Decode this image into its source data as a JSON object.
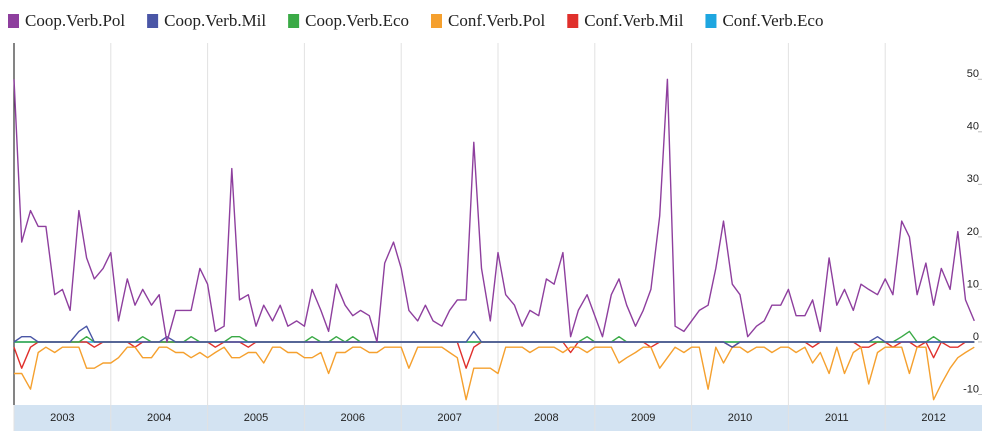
{
  "chart_data": {
    "type": "line",
    "x": [
      2003,
      2003.08,
      2003.17,
      2003.25,
      2003.33,
      2003.42,
      2003.5,
      2003.58,
      2003.67,
      2003.75,
      2003.83,
      2003.92,
      2004,
      2004.08,
      2004.17,
      2004.25,
      2004.33,
      2004.42,
      2004.5,
      2004.58,
      2004.67,
      2004.75,
      2004.83,
      2004.92,
      2005,
      2005.08,
      2005.17,
      2005.25,
      2005.33,
      2005.42,
      2005.5,
      2005.58,
      2005.67,
      2005.75,
      2005.83,
      2005.92,
      2006,
      2006.08,
      2006.17,
      2006.25,
      2006.33,
      2006.42,
      2006.5,
      2006.58,
      2006.67,
      2006.75,
      2006.83,
      2006.92,
      2007,
      2007.08,
      2007.17,
      2007.25,
      2007.33,
      2007.42,
      2007.5,
      2007.58,
      2007.67,
      2007.75,
      2007.83,
      2007.92,
      2008,
      2008.08,
      2008.17,
      2008.25,
      2008.33,
      2008.42,
      2008.5,
      2008.58,
      2008.67,
      2008.75,
      2008.83,
      2008.92,
      2009,
      2009.08,
      2009.17,
      2009.25,
      2009.33,
      2009.42,
      2009.5,
      2009.58,
      2009.67,
      2009.75,
      2009.83,
      2009.92,
      2010,
      2010.08,
      2010.17,
      2010.25,
      2010.33,
      2010.42,
      2010.5,
      2010.58,
      2010.67,
      2010.75,
      2010.83,
      2010.92,
      2011,
      2011.08,
      2011.17,
      2011.25,
      2011.33,
      2011.42,
      2011.5,
      2011.58,
      2011.67,
      2011.75,
      2011.83,
      2011.92,
      2012,
      2012.08,
      2012.17,
      2012.25,
      2012.33,
      2012.42,
      2012.5,
      2012.58,
      2012.67,
      2012.75,
      2012.83,
      2012.92
    ],
    "xlim": [
      2003,
      2013
    ],
    "xticks": [
      2003,
      2004,
      2005,
      2006,
      2007,
      2008,
      2009,
      2010,
      2011,
      2012
    ],
    "ylim": [
      -12,
      55
    ],
    "yticks": [
      -10,
      0,
      10,
      20,
      30,
      40,
      50
    ],
    "grid": true,
    "series": [
      {
        "name": "Coop.Verb.Pol",
        "color": "#8e3f9e",
        "values": [
          50,
          19,
          25,
          22,
          22,
          9,
          10,
          6,
          25,
          16,
          12,
          14,
          17,
          4,
          12,
          7,
          10,
          7,
          9,
          0,
          6,
          6,
          6,
          14,
          11,
          2,
          3,
          33,
          8,
          9,
          3,
          7,
          4,
          7,
          3,
          4,
          3,
          10,
          6,
          2,
          11,
          7,
          5,
          6,
          5,
          0,
          15,
          19,
          14,
          6,
          4,
          7,
          4,
          3,
          6,
          8,
          8,
          38,
          14,
          4,
          17,
          9,
          7,
          3,
          6,
          5,
          12,
          11,
          17,
          1,
          6,
          9,
          5,
          1,
          9,
          12,
          7,
          3,
          6,
          10,
          24,
          50,
          3,
          2,
          4,
          6,
          7,
          14,
          23,
          11,
          9,
          1,
          3,
          4,
          7,
          7,
          10,
          5,
          5,
          8,
          2,
          16,
          7,
          10,
          6,
          11,
          10,
          9,
          12,
          9,
          23,
          20,
          9,
          15,
          7,
          14,
          10,
          21,
          8,
          4
        ]
      },
      {
        "name": "Coop.Verb.Mil",
        "color": "#4a56a6",
        "values": [
          0,
          1,
          1,
          0,
          0,
          0,
          0,
          0,
          2,
          3,
          0,
          0,
          0,
          0,
          0,
          0,
          0,
          0,
          0,
          1,
          0,
          0,
          0,
          0,
          0,
          0,
          0,
          0,
          0,
          0,
          0,
          0,
          0,
          0,
          0,
          0,
          0,
          0,
          0,
          0,
          0,
          0,
          0,
          0,
          0,
          0,
          0,
          0,
          0,
          0,
          0,
          0,
          0,
          0,
          0,
          0,
          0,
          2,
          0,
          0,
          0,
          0,
          0,
          0,
          0,
          0,
          0,
          0,
          0,
          0,
          0,
          0,
          0,
          0,
          0,
          0,
          0,
          0,
          0,
          0,
          0,
          0,
          0,
          0,
          0,
          0,
          0,
          0,
          0,
          -1,
          0,
          0,
          0,
          0,
          0,
          0,
          0,
          0,
          0,
          0,
          0,
          0,
          0,
          0,
          0,
          0,
          0,
          1,
          0,
          0,
          0,
          0,
          0,
          0,
          0,
          0,
          0,
          0,
          0,
          0
        ]
      },
      {
        "name": "Coop.Verb.Eco",
        "color": "#3aaa46",
        "values": [
          0,
          0,
          0,
          0,
          0,
          0,
          0,
          0,
          0,
          1,
          0,
          0,
          0,
          0,
          0,
          0,
          1,
          0,
          0,
          0,
          0,
          0,
          1,
          0,
          0,
          0,
          0,
          1,
          1,
          0,
          0,
          0,
          0,
          0,
          0,
          0,
          0,
          1,
          0,
          0,
          1,
          0,
          1,
          0,
          0,
          0,
          0,
          0,
          0,
          0,
          0,
          0,
          0,
          0,
          0,
          0,
          0,
          0,
          0,
          0,
          0,
          0,
          0,
          0,
          0,
          0,
          0,
          0,
          0,
          0,
          0,
          1,
          0,
          0,
          0,
          1,
          0,
          0,
          0,
          0,
          0,
          0,
          0,
          0,
          0,
          0,
          0,
          0,
          0,
          0,
          0,
          0,
          0,
          0,
          0,
          0,
          0,
          0,
          0,
          0,
          0,
          0,
          0,
          0,
          0,
          0,
          0,
          0,
          0,
          0,
          1,
          2,
          0,
          0,
          1,
          0,
          0,
          0,
          0,
          0
        ]
      },
      {
        "name": "Conf.Verb.Pol",
        "color": "#f5a02e",
        "values": [
          -6,
          -6,
          -9,
          -2,
          -1,
          -2,
          -1,
          -1,
          -1,
          -5,
          -5,
          -4,
          -4,
          -3,
          -1,
          -1,
          -3,
          -3,
          -1,
          -1,
          -2,
          -2,
          -3,
          -2,
          -3,
          -2,
          -1,
          -3,
          -3,
          -2,
          -2,
          -4,
          -1,
          -1,
          -2,
          -2,
          -3,
          -3,
          -2,
          -6,
          -2,
          -2,
          -1,
          -1,
          -2,
          -2,
          -1,
          -1,
          -1,
          -5,
          -1,
          -1,
          -1,
          -1,
          -2,
          -3,
          -11,
          -5,
          -5,
          -5,
          -6,
          -1,
          -1,
          -1,
          -2,
          -1,
          -1,
          -1,
          -2,
          -1,
          -1,
          -2,
          -1,
          -1,
          -1,
          -4,
          -3,
          -2,
          -1,
          -1,
          -5,
          -3,
          -1,
          -2,
          -1,
          -1,
          -9,
          -1,
          -4,
          -1,
          -1,
          -2,
          -1,
          -1,
          -2,
          -1,
          -1,
          -2,
          -1,
          -4,
          -2,
          -6,
          -1,
          -6,
          -2,
          -1,
          -8,
          -2,
          -1,
          -1,
          -1,
          -6,
          -1,
          -1,
          -11,
          -8,
          -5,
          -3,
          -2,
          -1
        ]
      },
      {
        "name": "Conf.Verb.Mil",
        "color": "#e0302c",
        "values": [
          -1,
          -5,
          -1,
          0,
          0,
          0,
          0,
          0,
          0,
          0,
          -1,
          0,
          0,
          0,
          0,
          -1,
          0,
          0,
          0,
          0,
          0,
          0,
          0,
          0,
          0,
          -1,
          0,
          0,
          0,
          -1,
          0,
          0,
          0,
          0,
          0,
          0,
          0,
          0,
          0,
          0,
          0,
          0,
          0,
          0,
          0,
          0,
          0,
          0,
          0,
          0,
          0,
          0,
          0,
          0,
          0,
          0,
          -5,
          -1,
          0,
          0,
          0,
          0,
          0,
          0,
          0,
          0,
          0,
          0,
          0,
          -2,
          0,
          0,
          0,
          0,
          0,
          0,
          0,
          0,
          0,
          -1,
          0,
          0,
          0,
          0,
          0,
          0,
          0,
          0,
          0,
          -1,
          0,
          0,
          0,
          0,
          0,
          0,
          0,
          0,
          0,
          -1,
          0,
          0,
          0,
          0,
          0,
          -1,
          -1,
          0,
          0,
          -1,
          0,
          0,
          -1,
          0,
          -3,
          0,
          -1,
          -1,
          0,
          0
        ]
      },
      {
        "name": "Conf.Verb.Eco",
        "color": "#1ea6e0",
        "values": [
          0,
          0,
          0,
          0,
          0,
          0,
          0,
          0,
          0,
          0,
          0,
          0,
          0,
          0,
          0,
          0,
          0,
          0,
          0,
          0,
          0,
          0,
          0,
          0,
          0,
          0,
          0,
          0,
          0,
          0,
          0,
          0,
          0,
          0,
          0,
          0,
          0,
          0,
          0,
          0,
          0,
          0,
          0,
          0,
          0,
          0,
          0,
          0,
          0,
          0,
          0,
          0,
          0,
          0,
          0,
          0,
          0,
          0,
          0,
          0,
          0,
          0,
          0,
          0,
          0,
          0,
          0,
          0,
          0,
          0,
          0,
          0,
          0,
          0,
          0,
          0,
          0,
          0,
          0,
          0,
          0,
          0,
          0,
          0,
          0,
          0,
          0,
          0,
          0,
          0,
          0,
          0,
          0,
          0,
          0,
          0,
          0,
          0,
          0,
          0,
          0,
          0,
          0,
          0,
          0,
          0,
          0,
          0,
          0,
          0,
          0,
          0,
          0,
          0,
          0,
          0,
          0,
          0,
          0,
          0
        ]
      }
    ]
  }
}
